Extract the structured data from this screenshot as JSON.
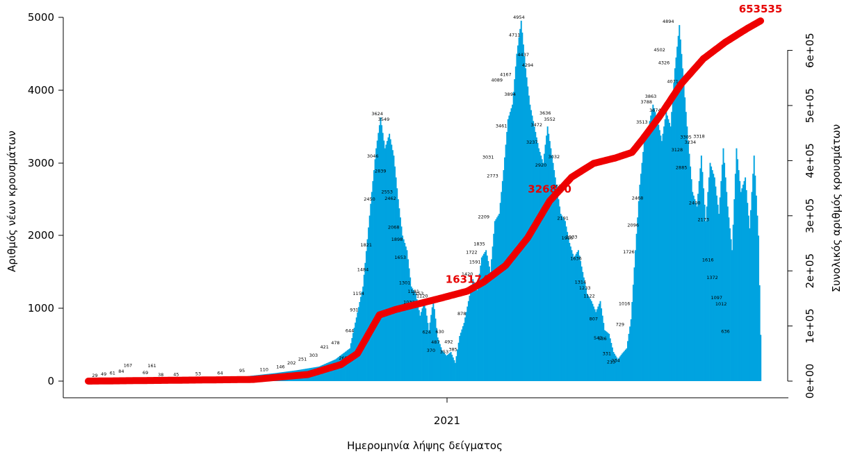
{
  "chart_data": {
    "type": "bar",
    "xlabel": "Ημερομηνία λήψης δείγματος",
    "ylabel": "Αριθμός νέων κρουσμάτων",
    "y2label": "Συνολικός αριθμός κρουσμάτων",
    "ylim": [
      0,
      5000
    ],
    "y2lim": [
      0,
      660000
    ],
    "yticks": [
      "0",
      "1000",
      "2000",
      "3000",
      "4000",
      "5000"
    ],
    "y2ticks": [
      "0e+00",
      "1e+05",
      "2e+05",
      "3e+05",
      "4e+05",
      "5e+05",
      "6e+05"
    ],
    "y2tick_values": [
      0,
      100000,
      200000,
      300000,
      400000,
      500000,
      600000
    ],
    "xtick_label": "2021",
    "xtick_day_index": 306,
    "period_days": 612,
    "bar_color": "#00a3e0",
    "cumulative_color": "#ee0000",
    "daily_keypoints": [
      [
        0,
        10
      ],
      [
        40,
        45
      ],
      [
        80,
        40
      ],
      [
        120,
        45
      ],
      [
        140,
        60
      ],
      [
        170,
        110
      ],
      [
        190,
        150
      ],
      [
        210,
        200
      ],
      [
        225,
        300
      ],
      [
        238,
        450
      ],
      [
        250,
        1300
      ],
      [
        258,
        2600
      ],
      [
        262,
        3200
      ],
      [
        266,
        3624
      ],
      [
        270,
        3200
      ],
      [
        274,
        3400
      ],
      [
        278,
        3100
      ],
      [
        282,
        2500
      ],
      [
        286,
        2000
      ],
      [
        290,
        1800
      ],
      [
        294,
        1300
      ],
      [
        298,
        1200
      ],
      [
        302,
        900
      ],
      [
        306,
        1100
      ],
      [
        310,
        700
      ],
      [
        314,
        1120
      ],
      [
        318,
        600
      ],
      [
        322,
        420
      ],
      [
        326,
        350
      ],
      [
        330,
        400
      ],
      [
        334,
        250
      ],
      [
        338,
        620
      ],
      [
        342,
        800
      ],
      [
        346,
        1100
      ],
      [
        350,
        1400
      ],
      [
        354,
        1250
      ],
      [
        358,
        1700
      ],
      [
        362,
        1800
      ],
      [
        366,
        1500
      ],
      [
        370,
        2200
      ],
      [
        374,
        2300
      ],
      [
        378,
        2900
      ],
      [
        382,
        3600
      ],
      [
        386,
        3800
      ],
      [
        390,
        4500
      ],
      [
        394,
        4954
      ],
      [
        398,
        4300
      ],
      [
        402,
        3800
      ],
      [
        406,
        3500
      ],
      [
        410,
        3200
      ],
      [
        414,
        3000
      ],
      [
        418,
        3500
      ],
      [
        422,
        3100
      ],
      [
        426,
        2700
      ],
      [
        430,
        2300
      ],
      [
        434,
        2200
      ],
      [
        438,
        1900
      ],
      [
        442,
        1700
      ],
      [
        446,
        1800
      ],
      [
        450,
        1500
      ],
      [
        454,
        1200
      ],
      [
        458,
        1100
      ],
      [
        462,
        950
      ],
      [
        466,
        1100
      ],
      [
        470,
        700
      ],
      [
        474,
        650
      ],
      [
        478,
        400
      ],
      [
        482,
        300
      ],
      [
        486,
        380
      ],
      [
        490,
        450
      ],
      [
        494,
        850
      ],
      [
        498,
        1800
      ],
      [
        502,
        2700
      ],
      [
        506,
        3300
      ],
      [
        510,
        3500
      ],
      [
        514,
        3800
      ],
      [
        518,
        3600
      ],
      [
        522,
        3300
      ],
      [
        526,
        3700
      ],
      [
        530,
        3500
      ],
      [
        534,
        4300
      ],
      [
        538,
        4894
      ],
      [
        542,
        4100
      ],
      [
        546,
        3300
      ],
      [
        550,
        2600
      ],
      [
        554,
        2400
      ],
      [
        558,
        3100
      ],
      [
        562,
        2200
      ],
      [
        566,
        3000
      ],
      [
        570,
        2800
      ],
      [
        574,
        2300
      ],
      [
        578,
        3200
      ],
      [
        582,
        2400
      ],
      [
        586,
        1800
      ],
      [
        590,
        3200
      ],
      [
        594,
        2600
      ],
      [
        598,
        2800
      ],
      [
        602,
        2100
      ],
      [
        606,
        3100
      ],
      [
        610,
        2000
      ],
      [
        612,
        636
      ]
    ],
    "cumulative_keypoints": [
      [
        0,
        0
      ],
      [
        150,
        3000
      ],
      [
        200,
        12000
      ],
      [
        230,
        30000
      ],
      [
        245,
        50000
      ],
      [
        255,
        85000
      ],
      [
        265,
        120000
      ],
      [
        280,
        130000
      ],
      [
        300,
        140000
      ],
      [
        320,
        150000
      ],
      [
        345,
        163174
      ],
      [
        360,
        180000
      ],
      [
        380,
        210000
      ],
      [
        400,
        260000
      ],
      [
        420,
        326840
      ],
      [
        440,
        370000
      ],
      [
        460,
        395000
      ],
      [
        480,
        405000
      ],
      [
        495,
        415000
      ],
      [
        505,
        440000
      ],
      [
        520,
        480000
      ],
      [
        540,
        540000
      ],
      [
        560,
        585000
      ],
      [
        580,
        615000
      ],
      [
        600,
        640000
      ],
      [
        612,
        653535
      ]
    ],
    "bar_labels": [
      [
        6,
        "29"
      ],
      [
        14,
        "49"
      ],
      [
        22,
        "61"
      ],
      [
        30,
        "84"
      ],
      [
        36,
        "167"
      ],
      [
        52,
        "69"
      ],
      [
        58,
        "161"
      ],
      [
        66,
        "38"
      ],
      [
        80,
        "45"
      ],
      [
        100,
        "53"
      ],
      [
        120,
        "64"
      ],
      [
        140,
        "95"
      ],
      [
        160,
        "110"
      ],
      [
        175,
        "146"
      ],
      [
        185,
        "202"
      ],
      [
        195,
        "251"
      ],
      [
        205,
        "303"
      ],
      [
        215,
        "421"
      ],
      [
        225,
        "478"
      ],
      [
        232,
        "268"
      ],
      [
        238,
        "644"
      ],
      [
        242,
        "931"
      ],
      [
        246,
        "1154"
      ],
      [
        250,
        "1484"
      ],
      [
        253,
        "1821"
      ],
      [
        256,
        "2450"
      ],
      [
        259,
        "3046"
      ],
      [
        263,
        "3624"
      ],
      [
        266,
        "2839"
      ],
      [
        269,
        "3549"
      ],
      [
        272,
        "2553"
      ],
      [
        275,
        "2462"
      ],
      [
        278,
        "2068"
      ],
      [
        281,
        "1898"
      ],
      [
        284,
        "1653"
      ],
      [
        288,
        "1301"
      ],
      [
        292,
        "1033"
      ],
      [
        296,
        "1181"
      ],
      [
        300,
        "1153"
      ],
      [
        304,
        "1120"
      ],
      [
        308,
        "624"
      ],
      [
        312,
        "370"
      ],
      [
        316,
        "487"
      ],
      [
        320,
        "630"
      ],
      [
        324,
        "353"
      ],
      [
        328,
        "492"
      ],
      [
        332,
        "385"
      ],
      [
        340,
        "878"
      ],
      [
        345,
        "1420"
      ],
      [
        349,
        "1722"
      ],
      [
        352,
        "1591"
      ],
      [
        356,
        "1835"
      ],
      [
        360,
        "2209"
      ],
      [
        364,
        "3031"
      ],
      [
        368,
        "2773"
      ],
      [
        372,
        "4089"
      ],
      [
        376,
        "3461"
      ],
      [
        380,
        "4167"
      ],
      [
        384,
        "3894"
      ],
      [
        388,
        "4711"
      ],
      [
        392,
        "4954"
      ],
      [
        396,
        "4437"
      ],
      [
        400,
        "4294"
      ],
      [
        404,
        "3237"
      ],
      [
        408,
        "3472"
      ],
      [
        412,
        "2920"
      ],
      [
        416,
        "3636"
      ],
      [
        420,
        "3552"
      ],
      [
        424,
        "3032"
      ],
      [
        428,
        "2628"
      ],
      [
        432,
        "2191"
      ],
      [
        436,
        "1918"
      ],
      [
        440,
        "1933"
      ],
      [
        444,
        "1636"
      ],
      [
        448,
        "1314"
      ],
      [
        452,
        "1233"
      ],
      [
        456,
        "1122"
      ],
      [
        460,
        "807"
      ],
      [
        464,
        "543"
      ],
      [
        468,
        "536"
      ],
      [
        472,
        "331"
      ],
      [
        476,
        "213"
      ],
      [
        480,
        "234"
      ],
      [
        484,
        "729"
      ],
      [
        488,
        "1016"
      ],
      [
        492,
        "1726"
      ],
      [
        496,
        "2096"
      ],
      [
        500,
        "2468"
      ],
      [
        504,
        "3513"
      ],
      [
        508,
        "3788"
      ],
      [
        512,
        "3863"
      ],
      [
        516,
        "3674"
      ],
      [
        520,
        "4502"
      ],
      [
        524,
        "4326"
      ],
      [
        528,
        "4894"
      ],
      [
        532,
        "4071"
      ],
      [
        536,
        "3128"
      ],
      [
        540,
        "2885"
      ],
      [
        544,
        "3305"
      ],
      [
        548,
        "3234"
      ],
      [
        552,
        "2400"
      ],
      [
        556,
        "3318"
      ],
      [
        560,
        "2173"
      ],
      [
        564,
        "1616"
      ],
      [
        568,
        "1372"
      ],
      [
        572,
        "1097"
      ],
      [
        576,
        "1012"
      ],
      [
        580,
        "636"
      ]
    ],
    "cumulative_labels": [
      {
        "day": 345,
        "value": 163174,
        "text": "163174"
      },
      {
        "day": 420,
        "value": 326840,
        "text": "326840"
      },
      {
        "day": 612,
        "value": 653535,
        "text": "653535"
      }
    ]
  }
}
